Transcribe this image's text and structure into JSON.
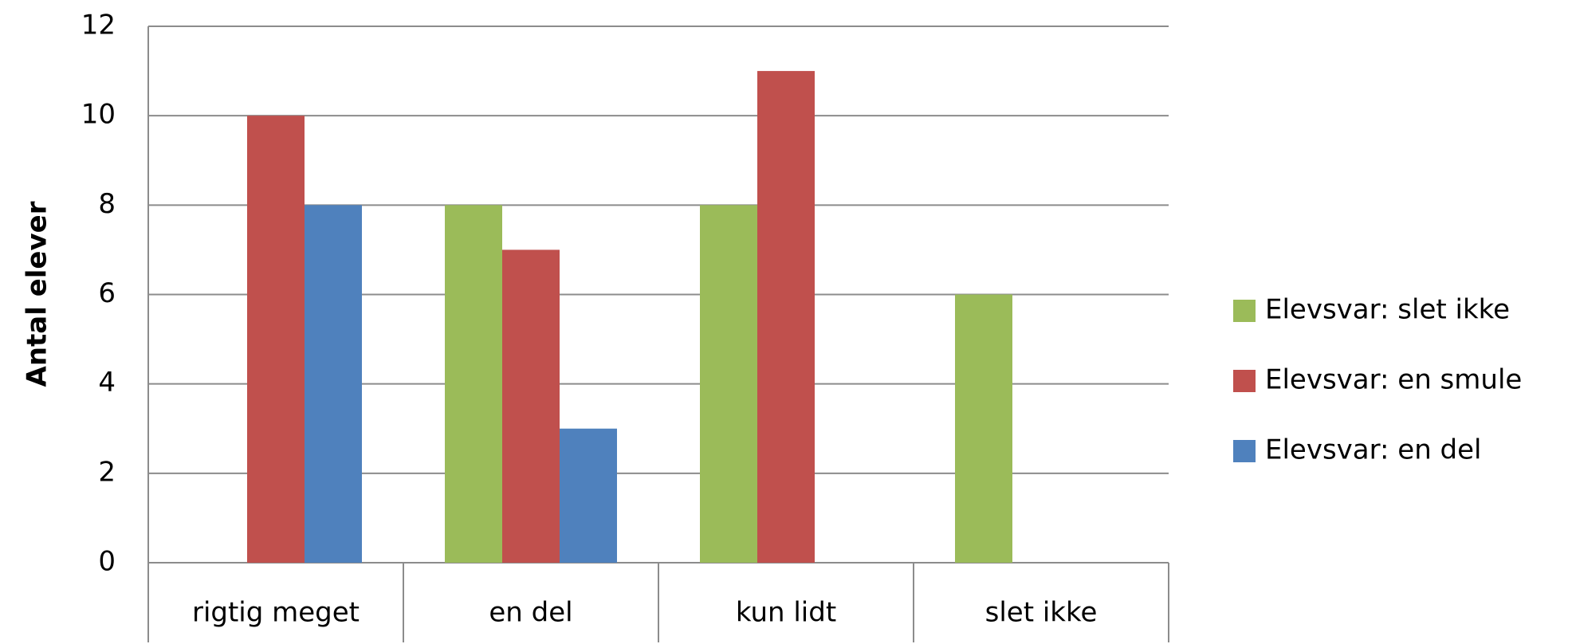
{
  "chart_data": {
    "type": "bar",
    "y_label": "Antal elever",
    "categories": [
      "rigtig meget",
      "en del",
      "kun lidt",
      "slet ikke"
    ],
    "series": [
      {
        "name": "Elevsvar: slet ikke",
        "color": "#9bbb59",
        "values": [
          0,
          8,
          8,
          6
        ]
      },
      {
        "name": "Elevsvar: en smule",
        "color": "#c0504d",
        "values": [
          10,
          7,
          11,
          0
        ]
      },
      {
        "name": "Elevsvar: en del",
        "color": "#4f81bd",
        "values": [
          8,
          3,
          0,
          0
        ]
      }
    ],
    "ylim": [
      0,
      12
    ],
    "yticks": [
      0,
      2,
      4,
      6,
      8,
      10,
      12
    ],
    "grid": true,
    "legend": "right"
  }
}
